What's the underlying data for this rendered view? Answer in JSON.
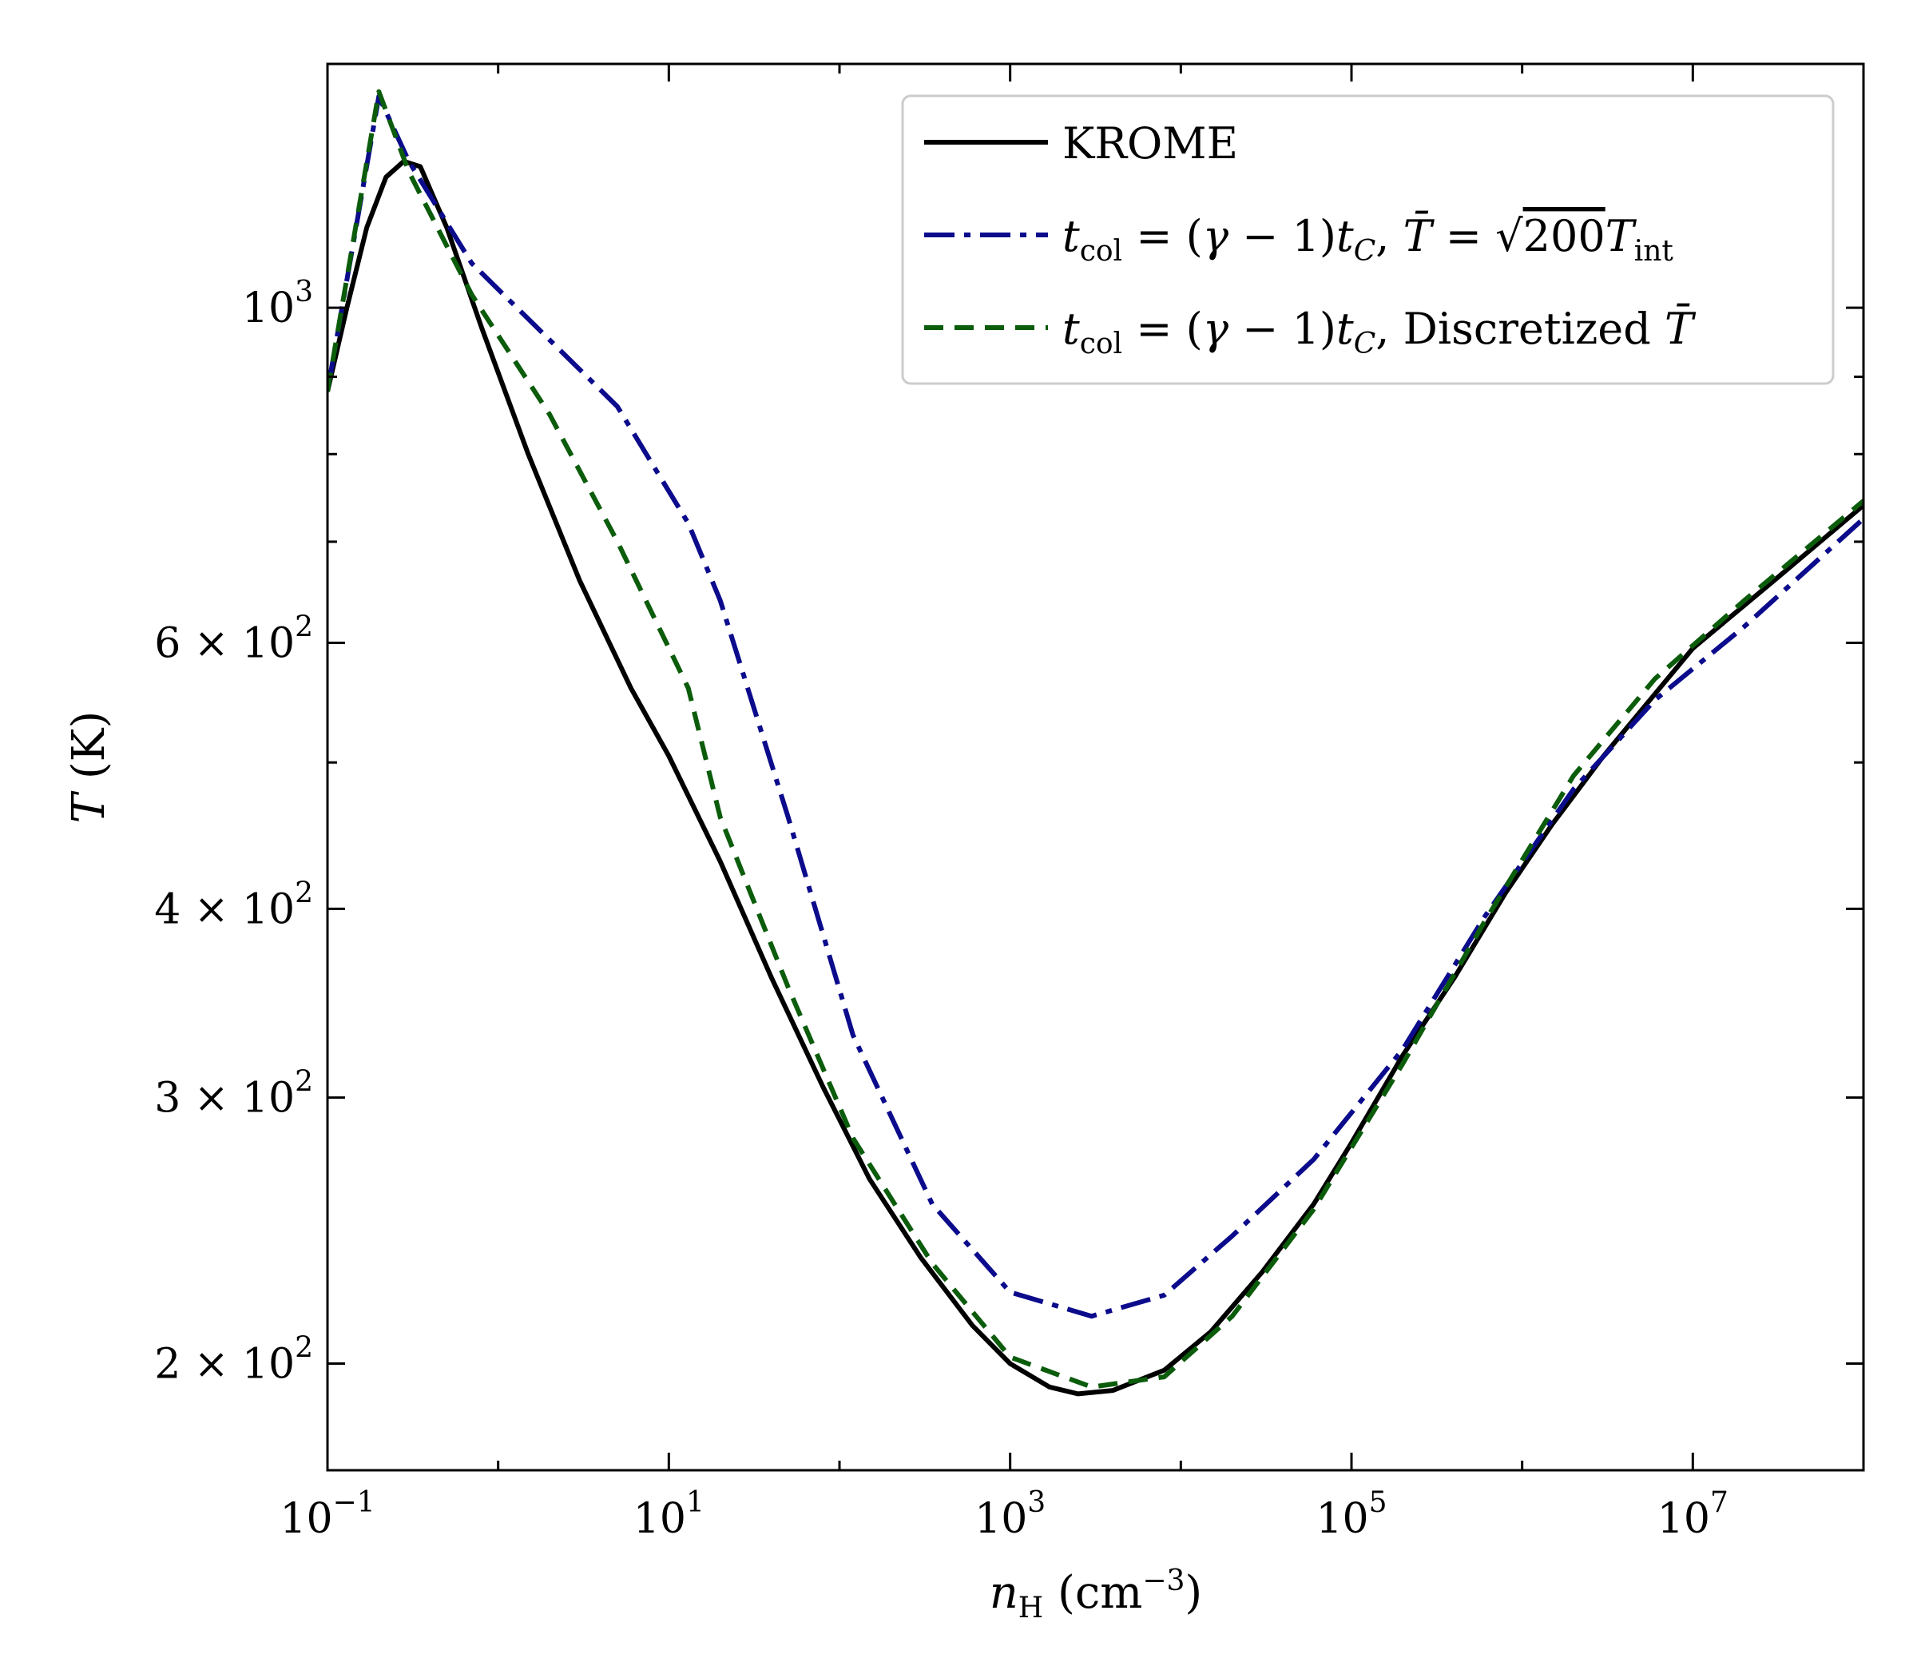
{
  "chart_data": {
    "type": "line",
    "title": "",
    "xlabel": "n_H (cm^-3)",
    "ylabel": "T (K)",
    "xscale": "log",
    "yscale": "log",
    "xlim": [
      0.1,
      100000000
    ],
    "ylim": [
      170,
      1450
    ],
    "x_ticks": [
      {
        "value": 0.1,
        "base": "10",
        "exp": "−1"
      },
      {
        "value": 10,
        "base": "10",
        "exp": "1"
      },
      {
        "value": 1000,
        "base": "10",
        "exp": "3"
      },
      {
        "value": 100000,
        "base": "10",
        "exp": "5"
      },
      {
        "value": 10000000,
        "base": "10",
        "exp": "7"
      }
    ],
    "y_ticks": [
      {
        "value": 200,
        "label": "2 × 10",
        "exp": "2"
      },
      {
        "value": 300,
        "label": "3 × 10",
        "exp": "2"
      },
      {
        "value": 400,
        "label": "4 × 10",
        "exp": "2"
      },
      {
        "value": 600,
        "label": "6 × 10",
        "exp": "2"
      },
      {
        "value": 1000,
        "label": "10",
        "exp": "3"
      }
    ],
    "legend_position": "top-right",
    "series": [
      {
        "name": "KROME",
        "legend": "KROME",
        "color": "#000000",
        "dash": "solid",
        "points": [
          [
            0.1,
            880
          ],
          [
            0.13,
            1000
          ],
          [
            0.17,
            1130
          ],
          [
            0.22,
            1220
          ],
          [
            0.28,
            1250
          ],
          [
            0.35,
            1240
          ],
          [
            0.5,
            1130
          ],
          [
            0.8,
            970
          ],
          [
            1.5,
            800
          ],
          [
            3,
            660
          ],
          [
            6,
            560
          ],
          [
            10,
            505
          ],
          [
            20,
            430
          ],
          [
            40,
            360
          ],
          [
            80,
            305
          ],
          [
            150,
            265
          ],
          [
            300,
            235
          ],
          [
            600,
            212
          ],
          [
            1000,
            200
          ],
          [
            1700,
            193
          ],
          [
            2500,
            191
          ],
          [
            4000,
            192
          ],
          [
            8000,
            198
          ],
          [
            15000,
            210
          ],
          [
            30000,
            230
          ],
          [
            60000,
            255
          ],
          [
            100000,
            280
          ],
          [
            200000,
            320
          ],
          [
            400000,
            360
          ],
          [
            800000,
            410
          ],
          [
            1500000,
            455
          ],
          [
            3000000,
            505
          ],
          [
            6000000,
            555
          ],
          [
            10000000,
            595
          ],
          [
            30000000,
            660
          ],
          [
            100000000,
            740
          ]
        ]
      },
      {
        "name": "tcol = (γ−1)tC, T̄ = √(200 T_int)",
        "legend_main": "t",
        "legend_text": "col = (γ − 1)t, T̄ = √200T int",
        "color": "#0b0b8c",
        "dash": "dashdot",
        "points": [
          [
            0.1,
            880
          ],
          [
            0.2,
            1380
          ],
          [
            0.3,
            1250
          ],
          [
            0.7,
            1070
          ],
          [
            5,
            860
          ],
          [
            13,
            720
          ],
          [
            20,
            640
          ],
          [
            50,
            460
          ],
          [
            120,
            330
          ],
          [
            350,
            255
          ],
          [
            1000,
            223
          ],
          [
            3000,
            215
          ],
          [
            8000,
            222
          ],
          [
            20000,
            243
          ],
          [
            60000,
            273
          ],
          [
            200000,
            323
          ],
          [
            600000,
            395
          ],
          [
            2000000,
            480
          ],
          [
            6000000,
            550
          ],
          [
            20000000,
            615
          ],
          [
            100000000,
            725
          ]
        ]
      },
      {
        "name": "tcol = (γ−1)tC, Discretized T̄",
        "legend_main": "t",
        "legend_text": "col = (γ − 1)t, Discretized T̄",
        "color": "#0b5c0b",
        "dash": "dashed",
        "points": [
          [
            0.1,
            880
          ],
          [
            0.2,
            1390
          ],
          [
            0.3,
            1230
          ],
          [
            0.7,
            1020
          ],
          [
            2,
            850
          ],
          [
            5,
            700
          ],
          [
            13,
            560
          ],
          [
            20,
            460
          ],
          [
            50,
            355
          ],
          [
            120,
            282
          ],
          [
            350,
            233
          ],
          [
            1000,
            202
          ],
          [
            3000,
            193
          ],
          [
            8000,
            196
          ],
          [
            20000,
            215
          ],
          [
            60000,
            253
          ],
          [
            200000,
            316
          ],
          [
            600000,
            392
          ],
          [
            2000000,
            490
          ],
          [
            6000000,
            568
          ],
          [
            20000000,
            640
          ],
          [
            100000000,
            745
          ]
        ]
      }
    ]
  }
}
